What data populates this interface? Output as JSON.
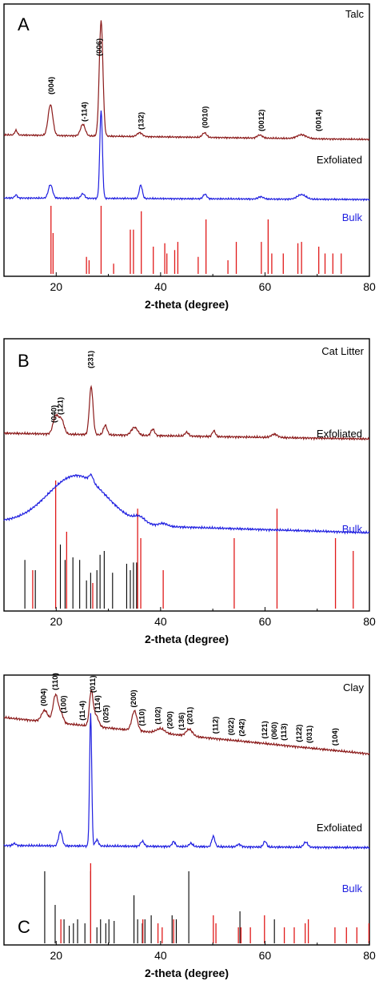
{
  "chart_data": [
    {
      "type": "line",
      "panel": "A",
      "sample": "Talc",
      "xlabel": "2-theta (degree)",
      "xlim": [
        10,
        80
      ],
      "xticks": [
        20,
        40,
        60,
        80
      ],
      "trace_labels": [
        "Exfoliated",
        "Bulk"
      ],
      "colors": {
        "exfoliated": "#8b1a1a",
        "bulk": "#1f1fe0",
        "ref_red": "#e01a1a",
        "ref_black": "#000000"
      },
      "exfoliated": {
        "baseline_left": 0.2,
        "baseline_right": 0.08,
        "peaks": [
          [
            12.3,
            0.12,
            0.25
          ],
          [
            18.9,
            0.8,
            0.45
          ],
          [
            25.1,
            0.3,
            0.45
          ],
          [
            28.6,
            3.0,
            0.35
          ],
          [
            36.0,
            0.1,
            0.5
          ],
          [
            48.4,
            0.12,
            0.4
          ],
          [
            59.0,
            0.08,
            0.5
          ],
          [
            67.0,
            0.1,
            0.9
          ]
        ]
      },
      "bulk": {
        "baseline_left": 0.1,
        "baseline_right": 0.06,
        "peaks": [
          [
            12.3,
            0.08,
            0.25
          ],
          [
            18.9,
            0.35,
            0.4
          ],
          [
            25.1,
            0.12,
            0.35
          ],
          [
            28.6,
            2.3,
            0.25
          ],
          [
            36.2,
            0.35,
            0.3
          ],
          [
            48.5,
            0.12,
            0.35
          ],
          [
            59.2,
            0.06,
            0.5
          ],
          [
            67.0,
            0.12,
            0.8
          ]
        ]
      },
      "reference_red": [
        [
          19.0,
          1.0
        ],
        [
          19.4,
          0.6
        ],
        [
          25.8,
          0.25
        ],
        [
          26.3,
          0.2
        ],
        [
          28.6,
          1.0
        ],
        [
          31.0,
          0.15
        ],
        [
          34.2,
          0.65
        ],
        [
          34.8,
          0.65
        ],
        [
          36.3,
          0.92
        ],
        [
          38.6,
          0.4
        ],
        [
          40.8,
          0.45
        ],
        [
          41.2,
          0.3
        ],
        [
          42.7,
          0.35
        ],
        [
          43.3,
          0.47
        ],
        [
          47.2,
          0.25
        ],
        [
          48.7,
          0.8
        ],
        [
          52.9,
          0.2
        ],
        [
          54.5,
          0.47
        ],
        [
          59.3,
          0.47
        ],
        [
          60.6,
          0.8
        ],
        [
          61.3,
          0.3
        ],
        [
          63.5,
          0.3
        ],
        [
          66.3,
          0.45
        ],
        [
          67.0,
          0.47
        ],
        [
          70.3,
          0.4
        ],
        [
          71.5,
          0.3
        ],
        [
          73.0,
          0.3
        ],
        [
          74.6,
          0.3
        ]
      ],
      "reference_black": [],
      "annotations": [
        {
          "text": "(004)",
          "x": 19.0
        },
        {
          "text": "(-114)",
          "x": 25.4
        },
        {
          "text": "(006)",
          "x": 28.2
        },
        {
          "text": "(132)",
          "x": 36.3
        },
        {
          "text": "(0010)",
          "x": 48.5
        },
        {
          "text": "(0012)",
          "x": 59.3
        },
        {
          "text": "(0014)",
          "x": 70.3
        }
      ]
    },
    {
      "type": "line",
      "panel": "B",
      "sample": "Cat Litter",
      "xlabel": "2-theta (degree)",
      "xlim": [
        10,
        80
      ],
      "xticks": [
        20,
        40,
        60,
        80
      ],
      "trace_labels": [
        "Exfoliated",
        "Bulk"
      ],
      "colors": {
        "exfoliated": "#8b1a1a",
        "bulk": "#1f1fe0",
        "ref_red": "#e01a1a",
        "ref_black": "#000000"
      },
      "exfoliated": {
        "baseline_left": 0.3,
        "baseline_right": 0.12,
        "peaks": [
          [
            19.9,
            0.55,
            0.5
          ],
          [
            21.0,
            0.45,
            0.5
          ],
          [
            26.7,
            1.5,
            0.35
          ],
          [
            29.4,
            0.3,
            0.35
          ],
          [
            35.0,
            0.25,
            0.6
          ],
          [
            38.5,
            0.2,
            0.35
          ],
          [
            45.0,
            0.12,
            0.35
          ],
          [
            50.2,
            0.18,
            0.3
          ],
          [
            61.8,
            0.1,
            0.6
          ]
        ]
      },
      "bulk": {
        "baseline_left": 0.3,
        "baseline_right": 0.05,
        "peaks": [
          [
            24.0,
            1.1,
            5.5
          ],
          [
            26.7,
            0.15,
            0.4
          ],
          [
            36.0,
            0.12,
            1.0
          ],
          [
            40.5,
            0.06,
            0.8
          ]
        ]
      },
      "reference_red": [
        [
          15.5,
          0.3
        ],
        [
          19.9,
          1.0
        ],
        [
          22.0,
          0.6
        ],
        [
          27.0,
          0.2
        ],
        [
          35.6,
          0.78
        ],
        [
          36.2,
          0.55
        ],
        [
          40.5,
          0.3
        ],
        [
          54.1,
          0.55
        ],
        [
          62.3,
          0.78
        ],
        [
          73.5,
          0.55
        ],
        [
          76.9,
          0.45
        ]
      ],
      "reference_black": [
        [
          14.0,
          0.38
        ],
        [
          16.0,
          0.3
        ],
        [
          20.8,
          0.5
        ],
        [
          21.7,
          0.38
        ],
        [
          23.2,
          0.4
        ],
        [
          24.5,
          0.38
        ],
        [
          25.8,
          0.22
        ],
        [
          26.6,
          0.28
        ],
        [
          27.8,
          0.3
        ],
        [
          28.4,
          0.42
        ],
        [
          29.2,
          0.45
        ],
        [
          30.8,
          0.28
        ],
        [
          33.5,
          0.35
        ],
        [
          34.2,
          0.3
        ],
        [
          34.8,
          0.36
        ],
        [
          35.4,
          0.36
        ]
      ],
      "annotations": [
        {
          "text": "(040)",
          "x": 19.6
        },
        {
          "text": "(121)",
          "x": 20.8
        },
        {
          "text": "(231)",
          "x": 26.6
        }
      ]
    },
    {
      "type": "line",
      "panel": "C",
      "sample": "Clay",
      "xlabel": "2-theta (degree)",
      "xlim": [
        10,
        80
      ],
      "xticks": [
        20,
        40,
        60,
        80
      ],
      "trace_labels": [
        "Exfoliated",
        "Bulk"
      ],
      "colors": {
        "exfoliated": "#8b1a1a",
        "bulk": "#1f1fe0",
        "ref_red": "#e01a1a",
        "ref_black": "#000000"
      },
      "exfoliated": {
        "baseline_left": 0.7,
        "baseline_right": 0.05,
        "peaks": [
          [
            17.8,
            0.2,
            0.6
          ],
          [
            19.9,
            0.5,
            0.5
          ],
          [
            21.0,
            0.15,
            0.4
          ],
          [
            26.7,
            0.6,
            0.35
          ],
          [
            27.6,
            0.2,
            0.5
          ],
          [
            35.0,
            0.35,
            0.5
          ],
          [
            40.0,
            0.08,
            0.8
          ],
          [
            45.5,
            0.12,
            0.6
          ]
        ]
      },
      "bulk": {
        "baseline_left": 0.08,
        "baseline_right": 0.03,
        "peaks": [
          [
            12.0,
            0.05,
            0.3
          ],
          [
            20.8,
            0.35,
            0.35
          ],
          [
            26.6,
            3.2,
            0.2
          ],
          [
            27.8,
            0.15,
            0.3
          ],
          [
            36.5,
            0.12,
            0.35
          ],
          [
            42.5,
            0.12,
            0.3
          ],
          [
            45.8,
            0.08,
            0.35
          ],
          [
            50.1,
            0.25,
            0.3
          ],
          [
            55.0,
            0.06,
            0.4
          ],
          [
            60.0,
            0.14,
            0.3
          ],
          [
            67.8,
            0.12,
            0.4
          ]
        ]
      },
      "reference_red": [
        [
          20.9,
          0.3
        ],
        [
          26.6,
          1.0
        ],
        [
          36.6,
          0.3
        ],
        [
          39.5,
          0.25
        ],
        [
          40.3,
          0.2
        ],
        [
          42.5,
          0.3
        ],
        [
          50.1,
          0.35
        ],
        [
          50.6,
          0.25
        ],
        [
          54.9,
          0.2
        ],
        [
          55.4,
          0.2
        ],
        [
          57.2,
          0.2
        ],
        [
          59.9,
          0.35
        ],
        [
          63.7,
          0.2
        ],
        [
          65.6,
          0.2
        ],
        [
          67.7,
          0.25
        ],
        [
          68.3,
          0.3
        ],
        [
          73.4,
          0.2
        ],
        [
          75.6,
          0.2
        ],
        [
          77.6,
          0.2
        ],
        [
          79.9,
          0.25
        ]
      ],
      "reference_black": [
        [
          17.8,
          0.9
        ],
        [
          19.8,
          0.48
        ],
        [
          21.5,
          0.3
        ],
        [
          22.5,
          0.22
        ],
        [
          23.3,
          0.25
        ],
        [
          24.1,
          0.3
        ],
        [
          25.5,
          0.25
        ],
        [
          26.6,
          0.9
        ],
        [
          27.8,
          0.2
        ],
        [
          28.5,
          0.3
        ],
        [
          29.5,
          0.25
        ],
        [
          30.1,
          0.3
        ],
        [
          31.1,
          0.28
        ],
        [
          34.9,
          0.6
        ],
        [
          35.6,
          0.3
        ],
        [
          36.5,
          0.25
        ],
        [
          37.0,
          0.3
        ],
        [
          38.2,
          0.35
        ],
        [
          42.2,
          0.35
        ],
        [
          43.0,
          0.3
        ],
        [
          45.4,
          0.9
        ],
        [
          55.2,
          0.4
        ],
        [
          61.8,
          0.3
        ]
      ],
      "annotations": [
        {
          "text": "(004)",
          "x": 17.6
        },
        {
          "text": "(110)",
          "x": 19.8
        },
        {
          "text": "(100)",
          "x": 21.4
        },
        {
          "text": "(11-4)",
          "x": 25.0
        },
        {
          "text": "(011)",
          "x": 27.0
        },
        {
          "text": "(114)",
          "x": 27.9
        },
        {
          "text": "(025)",
          "x": 29.5
        },
        {
          "text": "(200)",
          "x": 34.8
        },
        {
          "text": "(110)",
          "x": 36.4
        },
        {
          "text": "(102)",
          "x": 39.5
        },
        {
          "text": "(200)",
          "x": 41.8
        },
        {
          "text": "(136)",
          "x": 44.0
        },
        {
          "text": "(201)",
          "x": 45.6
        },
        {
          "text": "(112)",
          "x": 50.5
        },
        {
          "text": "(022)",
          "x": 53.5
        },
        {
          "text": "(242)",
          "x": 55.6
        },
        {
          "text": "(121)",
          "x": 59.9
        },
        {
          "text": "(060)",
          "x": 61.8
        },
        {
          "text": "(113)",
          "x": 63.6
        },
        {
          "text": "(122)",
          "x": 66.5
        },
        {
          "text": "(031)",
          "x": 68.5
        },
        {
          "text": "(104)",
          "x": 73.4
        }
      ]
    }
  ]
}
